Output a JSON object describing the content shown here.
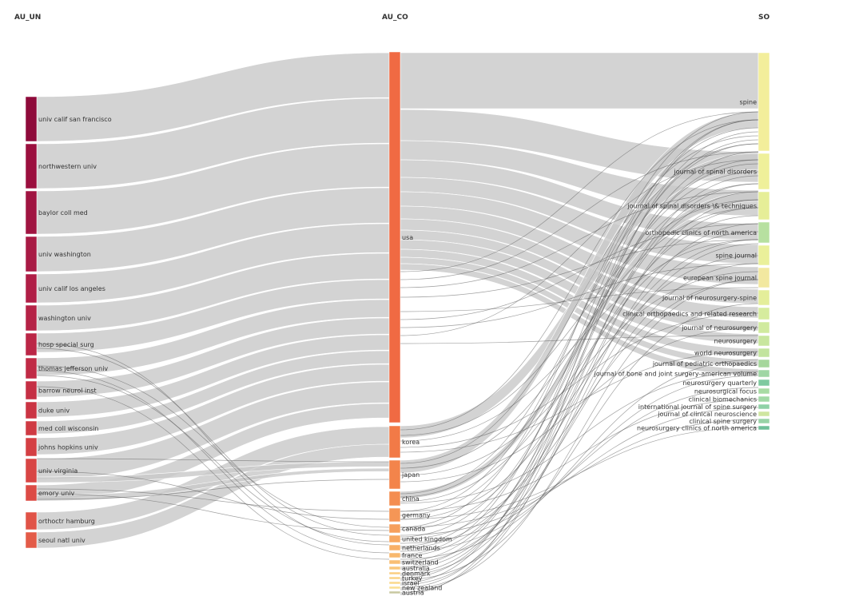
{
  "columns": {
    "left": "AU_UN",
    "middle": "AU_CO",
    "right": "SO"
  },
  "colors": {
    "link": "#c9c9c9",
    "thin_link": "#555555"
  },
  "left_nodes": [
    {
      "label": "univ calif san francisco",
      "color": "#8e0a3a"
    },
    {
      "label": "northwestern univ",
      "color": "#9b0f3e"
    },
    {
      "label": "baylor coll med",
      "color": "#a01441"
    },
    {
      "label": "univ washington",
      "color": "#a81a44"
    },
    {
      "label": "univ calif los angeles",
      "color": "#b01e46"
    },
    {
      "label": "washington univ",
      "color": "#b52246"
    },
    {
      "label": "hosp special surg",
      "color": "#bb2646"
    },
    {
      "label": "thomas jefferson univ",
      "color": "#c02a45"
    },
    {
      "label": "barrow neurol inst",
      "color": "#c52f44"
    },
    {
      "label": "duke univ",
      "color": "#ca3443"
    },
    {
      "label": "med coll wisconsin",
      "color": "#cf3a43"
    },
    {
      "label": "johns hopkins univ",
      "color": "#d43f43"
    },
    {
      "label": "univ virginia",
      "color": "#d84544"
    },
    {
      "label": "emory univ",
      "color": "#dc4b45"
    },
    {
      "label": "orthoctr hamburg",
      "color": "#e05347"
    },
    {
      "label": "seoul natl univ",
      "color": "#e35b48"
    }
  ],
  "middle_nodes": [
    {
      "label": "usa",
      "color": "#f06a43"
    },
    {
      "label": "korea",
      "color": "#f27a47"
    },
    {
      "label": "japan",
      "color": "#f3844b"
    },
    {
      "label": "china",
      "color": "#f48d50"
    },
    {
      "label": "germany",
      "color": "#f59656"
    },
    {
      "label": "canada",
      "color": "#f69f5c"
    },
    {
      "label": "united kingdom",
      "color": "#f7a862"
    },
    {
      "label": "netherlands",
      "color": "#f8b068"
    },
    {
      "label": "france",
      "color": "#f8b86e"
    },
    {
      "label": "switzerland",
      "color": "#f9bf74"
    },
    {
      "label": "australia",
      "color": "#f9c67a"
    },
    {
      "label": "denmark",
      "color": "#facd80"
    },
    {
      "label": "turkey",
      "color": "#fad386"
    },
    {
      "label": "israel",
      "color": "#fad98c"
    },
    {
      "label": "new zealand",
      "color": "#fbdf92"
    },
    {
      "label": "austria",
      "color": "#c8c8a0"
    }
  ],
  "right_nodes": [
    {
      "label": "spine",
      "color": "#f3ee9b"
    },
    {
      "label": "journal of spinal disorders",
      "color": "#eff09a"
    },
    {
      "label": "journal of spinal disorders \\& techniques",
      "color": "#e6ee98"
    },
    {
      "label": "orthopedic clinics of north america",
      "color": "#b7e0a0"
    },
    {
      "label": "spine journal",
      "color": "#eaf09a"
    },
    {
      "label": "european spine journal",
      "color": "#f2e8a0"
    },
    {
      "label": "journal of neurosurgery-spine",
      "color": "#e4ee9a"
    },
    {
      "label": "clinical orthopaedics and related research",
      "color": "#d6ec9e"
    },
    {
      "label": "journal of neurosurgery",
      "color": "#d0ea9e"
    },
    {
      "label": "neurosurgery",
      "color": "#c8e69e"
    },
    {
      "label": "world neurosurgery",
      "color": "#c2e49e"
    },
    {
      "label": "journal of pediatric orthopaedics",
      "color": "#a6d79c"
    },
    {
      "label": "journal of bone and joint surgery-american volume",
      "color": "#9fd6a4"
    },
    {
      "label": "neurosurgery quarterly",
      "color": "#7fcaa0"
    },
    {
      "label": "neurosurgical focus",
      "color": "#a8dba4"
    },
    {
      "label": "clinical biomechanics",
      "color": "#a2d9a6"
    },
    {
      "label": "international journal of spine surgery",
      "color": "#8fd1a6"
    },
    {
      "label": "journal of clinical neuroscience",
      "color": "#cfe6a0"
    },
    {
      "label": "clinical spine surgery",
      "color": "#98d3a6"
    },
    {
      "label": "neurosurgery clinics of north america",
      "color": "#6fbf98"
    }
  ]
}
